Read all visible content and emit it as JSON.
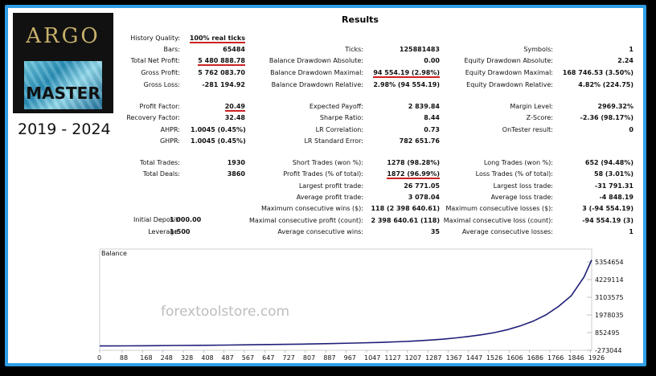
{
  "logo": {
    "word": "ARGO",
    "sub": "MASTER"
  },
  "years": "2019 - 2024",
  "title": "Results",
  "col1": [
    {
      "label": "History Quality:",
      "value": "100% real ticks"
    },
    {
      "label": "Bars:",
      "value": "65484"
    },
    {
      "label": "Total Net Profit:",
      "value": "5 480 888.78"
    },
    {
      "label": "Gross Profit:",
      "value": "5 762 083.70"
    },
    {
      "label": "Gross Loss:",
      "value": "-281 194.92"
    },
    {
      "label": "Profit Factor:",
      "value": "20.49"
    },
    {
      "label": "Recovery Factor:",
      "value": "32.48"
    },
    {
      "label": "AHPR:",
      "value": "1.0045 (0.45%)"
    },
    {
      "label": "GHPR:",
      "value": "1.0045 (0.45%)"
    },
    {
      "label": "Total Trades:",
      "value": "1930"
    },
    {
      "label": "Total Deals:",
      "value": "3860"
    },
    {
      "label": "Initial Deposit:",
      "value": "1 000.00"
    },
    {
      "label": "Leverage:",
      "value": "1:500"
    }
  ],
  "col2": [
    {
      "label": "Ticks:",
      "value": "125881483"
    },
    {
      "label": "Balance Drawdown Absolute:",
      "value": "0.00"
    },
    {
      "label": "Balance Drawdown Maximal:",
      "value": "94 554.19 (2.98%)"
    },
    {
      "label": "Balance Drawdown Relative:",
      "value": "2.98% (94 554.19)"
    },
    {
      "label": "Expected Payoff:",
      "value": "2 839.84"
    },
    {
      "label": "Sharpe Ratio:",
      "value": "8.44"
    },
    {
      "label": "LR Correlation:",
      "value": "0.73"
    },
    {
      "label": "LR Standard Error:",
      "value": "782 651.76"
    },
    {
      "label": "Short Trades (won %):",
      "value": "1278 (98.28%)"
    },
    {
      "label": "Profit Trades (% of total):",
      "value": "1872 (96.99%)"
    },
    {
      "label": "Largest profit trade:",
      "value": "26 771.05"
    },
    {
      "label": "Average profit trade:",
      "value": "3 078.04"
    },
    {
      "label": "Maximum consecutive wins ($):",
      "value": "118 (2 398 640.61)"
    },
    {
      "label": "Maximal consecutive profit (count):",
      "value": "2 398 640.61 (118)"
    },
    {
      "label": "Average consecutive wins:",
      "value": "35"
    }
  ],
  "col3": [
    {
      "label": "Symbols:",
      "value": "1"
    },
    {
      "label": "Equity Drawdown Absolute:",
      "value": "2.24"
    },
    {
      "label": "Equity Drawdown Maximal:",
      "value": "168 746.53 (3.50%)"
    },
    {
      "label": "Equity Drawdown Relative:",
      "value": "4.82% (224.75)"
    },
    {
      "label": "Margin Level:",
      "value": "2969.32%"
    },
    {
      "label": "Z-Score:",
      "value": "-2.36 (98.17%)"
    },
    {
      "label": "OnTester result:",
      "value": "0"
    },
    {
      "label": "Long Trades (won %):",
      "value": "652 (94.48%)"
    },
    {
      "label": "Loss Trades (% of total):",
      "value": "58 (3.01%)"
    },
    {
      "label": "Largest loss trade:",
      "value": "-31 791.31"
    },
    {
      "label": "Average loss trade:",
      "value": "-4 848.19"
    },
    {
      "label": "Maximum consecutive losses ($):",
      "value": "3 (-94 554.19)"
    },
    {
      "label": "Maximal consecutive loss (count):",
      "value": "-94 554.19 (3)"
    },
    {
      "label": "Average consecutive losses:",
      "value": "1"
    }
  ],
  "chart_data": {
    "type": "line",
    "title": "Balance",
    "x_ticks": [
      0,
      88,
      168,
      248,
      328,
      408,
      487,
      567,
      647,
      727,
      807,
      887,
      967,
      1047,
      1127,
      1207,
      1287,
      1367,
      1447,
      1526,
      1606,
      1686,
      1766,
      1846,
      1926
    ],
    "y_ticks": [
      -273044,
      852495,
      1978035,
      3103575,
      4229114,
      5354654
    ],
    "ylim": [
      -273044,
      6000000
    ],
    "xlim": [
      0,
      1930
    ],
    "line_color": "#1f1f7a",
    "series": [
      {
        "values_x": [
          0,
          100,
          200,
          300,
          400,
          500,
          600,
          700,
          800,
          900,
          1000,
          1100,
          1200,
          1250,
          1300,
          1350,
          1400,
          1450,
          1500,
          1550,
          1600,
          1650,
          1700,
          1750,
          1800,
          1850,
          1900,
          1930
        ],
        "values_y": [
          1000,
          9000,
          20000,
          32000,
          45000,
          60000,
          78000,
          98000,
          120000,
          150000,
          185000,
          230000,
          290000,
          330000,
          380000,
          440000,
          520000,
          610000,
          720000,
          860000,
          1040000,
          1280000,
          1580000,
          1980000,
          2520000,
          3200000,
          4400000,
          5480888
        ]
      }
    ]
  },
  "watermark": "forextoolstore.com"
}
